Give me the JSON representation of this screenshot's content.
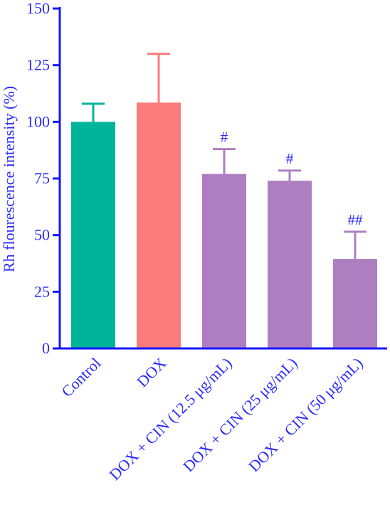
{
  "chart_data": {
    "type": "bar",
    "title": "",
    "xlabel": "",
    "ylabel": "Rh flourescence intensity (%)",
    "ylim": [
      0,
      150
    ],
    "yticks": [
      "0",
      "25",
      "50",
      "75",
      "100",
      "125",
      "150"
    ],
    "categories": [
      "Control",
      "DOX",
      "DOX + CIN (12.5 μg/mL)",
      "DOX + CIN (25 μg/mL)",
      "DOX + CIN (50 μg/mL)"
    ],
    "values": [
      100,
      108.5,
      77,
      74,
      39.5
    ],
    "error": [
      8,
      21.5,
      11,
      4.5,
      12
    ],
    "annotations": [
      "",
      "",
      "#",
      "#",
      "##"
    ],
    "bar_colors": [
      "#00B49A",
      "#FA7B7B",
      "#AE7FC0",
      "#AE7FC0",
      "#AE7FC0"
    ],
    "axis_color": "#1515FF",
    "text_color": "#2A2AFF",
    "grid": false,
    "legend": "none"
  }
}
